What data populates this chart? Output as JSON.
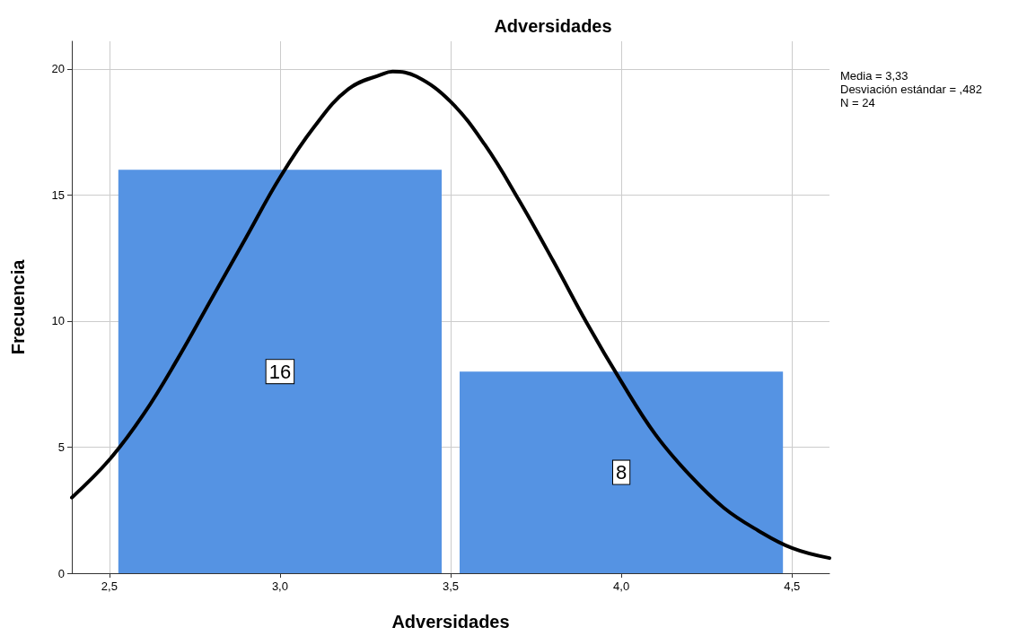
{
  "chart_data": {
    "type": "histogram",
    "title": "Adversidades",
    "xlabel": "Adversidades",
    "ylabel": "Frecuencia",
    "bins": [
      2.5,
      3.5,
      4.5
    ],
    "series": [
      {
        "color": "#5593e3",
        "values": [
          16,
          8
        ],
        "value_labels": [
          "16",
          "8"
        ]
      },
      {
        "type": "line",
        "color": "#000000",
        "x": [
          2.39,
          2.5,
          2.6,
          2.7,
          2.8,
          2.9,
          3.0,
          3.1,
          3.2,
          3.3,
          3.33,
          3.4,
          3.5,
          3.6,
          3.7,
          3.8,
          3.9,
          4.0,
          4.1,
          4.2,
          4.3,
          4.4,
          4.5,
          4.61
        ],
        "values": [
          3.0,
          4.5,
          6.3,
          8.5,
          10.9,
          13.3,
          15.7,
          17.7,
          19.2,
          19.8,
          19.9,
          19.7,
          18.7,
          17.0,
          14.8,
          12.4,
          9.9,
          7.6,
          5.5,
          3.9,
          2.6,
          1.7,
          1.0,
          0.6
        ]
      }
    ],
    "xlim": [
      2.39,
      4.61
    ],
    "xticks": [
      {
        "value": 2.5,
        "label": "2,5"
      },
      {
        "value": 3.0,
        "label": "3,0"
      },
      {
        "value": 3.5,
        "label": "3,5"
      },
      {
        "value": 4.0,
        "label": "4,0"
      },
      {
        "value": 4.5,
        "label": "4,5"
      }
    ],
    "ylim": [
      0,
      21.1
    ],
    "yticks": [
      0,
      5,
      10,
      15,
      20
    ],
    "grid": true,
    "annotations": [
      "Media = 3,33",
      "Desviación estándar = ,482",
      "N = 24"
    ]
  }
}
